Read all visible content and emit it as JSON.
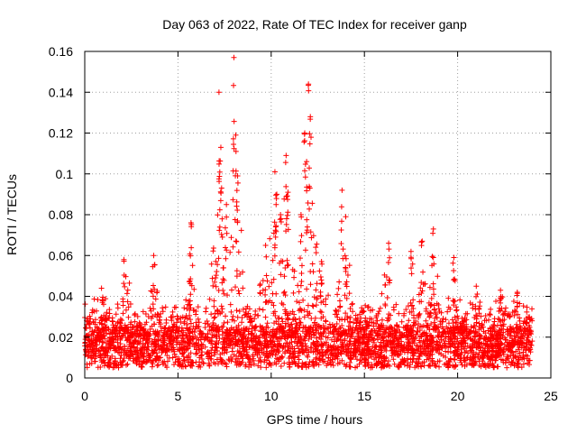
{
  "colors": {
    "series": "#ff0000",
    "axis": "#000000",
    "grid": "#a0a0a0",
    "background": "#ffffff"
  },
  "chart_data": {
    "type": "scatter",
    "title": "Day 063 of 2022, Rate Of TEC Index for receiver ganp",
    "xlabel": "GPS time / hours",
    "ylabel": "ROTI / TECUs",
    "xlim": [
      0,
      25
    ],
    "ylim": [
      0,
      0.16
    ],
    "x_ticks": [
      0,
      5,
      10,
      15,
      20,
      25
    ],
    "x_tick_labels": [
      "0",
      "5",
      "10",
      "15",
      "20",
      "25"
    ],
    "y_ticks": [
      0,
      0.02,
      0.04,
      0.06,
      0.08,
      0.1,
      0.12,
      0.14,
      0.16
    ],
    "y_tick_labels": [
      "0",
      "0.02",
      "0.04",
      "0.06",
      "0.08",
      "0.1",
      "0.12",
      "0.14",
      "0.16"
    ],
    "grid": true,
    "marker": "+",
    "series": [
      {
        "name": "ROTI",
        "color": "#ff0000",
        "x_range": [
          0,
          24
        ],
        "baseline_range": [
          0.005,
          0.025
        ],
        "peaks": [
          {
            "x": 0.9,
            "y": 0.044
          },
          {
            "x": 2.1,
            "y": 0.058
          },
          {
            "x": 3.7,
            "y": 0.06
          },
          {
            "x": 5.7,
            "y": 0.076
          },
          {
            "x": 7.2,
            "y": 0.14
          },
          {
            "x": 7.3,
            "y": 0.113
          },
          {
            "x": 7.6,
            "y": 0.085
          },
          {
            "x": 8.0,
            "y": 0.157
          },
          {
            "x": 8.1,
            "y": 0.119
          },
          {
            "x": 8.2,
            "y": 0.099
          },
          {
            "x": 9.7,
            "y": 0.065
          },
          {
            "x": 10.2,
            "y": 0.101
          },
          {
            "x": 10.3,
            "y": 0.09
          },
          {
            "x": 10.5,
            "y": 0.08
          },
          {
            "x": 10.8,
            "y": 0.109
          },
          {
            "x": 10.9,
            "y": 0.091
          },
          {
            "x": 11.6,
            "y": 0.08
          },
          {
            "x": 11.8,
            "y": 0.12
          },
          {
            "x": 11.9,
            "y": 0.106
          },
          {
            "x": 12.0,
            "y": 0.144
          },
          {
            "x": 12.1,
            "y": 0.128
          },
          {
            "x": 12.7,
            "y": 0.057
          },
          {
            "x": 13.8,
            "y": 0.092
          },
          {
            "x": 14.0,
            "y": 0.079
          },
          {
            "x": 16.3,
            "y": 0.066
          },
          {
            "x": 17.5,
            "y": 0.062
          },
          {
            "x": 18.1,
            "y": 0.067
          },
          {
            "x": 18.7,
            "y": 0.073
          },
          {
            "x": 19.8,
            "y": 0.059
          },
          {
            "x": 21.0,
            "y": 0.045
          },
          {
            "x": 22.3,
            "y": 0.043
          },
          {
            "x": 23.2,
            "y": 0.042
          }
        ]
      }
    ]
  }
}
